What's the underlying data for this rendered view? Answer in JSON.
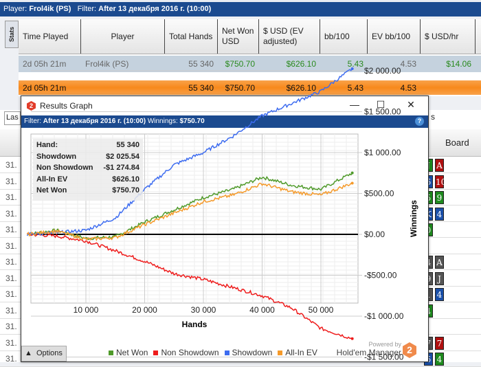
{
  "topbar": {
    "player_label": "Player:",
    "player": "Frol4ik (PS)",
    "filter_label": "Filter:",
    "filter": "After 13 декабря 2016 г. (10:00)"
  },
  "stats_tab": "Stats",
  "table": {
    "headers": [
      "Time Played",
      "Player",
      "Total Hands",
      "Net Won USD",
      "$ USD (EV adjusted)",
      "bb/100",
      "EV bb/100",
      "$ USD/hr"
    ],
    "row": [
      "2d 05h 21m",
      "Frol4ik (PS)",
      "55 340",
      "$750.70",
      "$626.10",
      "5.43",
      "4.53",
      "$14.06"
    ],
    "total": [
      "2d 05h 21m",
      "",
      "55 340",
      "$750.70",
      "$626.10",
      "5.43",
      "4.53",
      ""
    ]
  },
  "lower": {
    "dropdown": "Las",
    "board_header": "Board",
    "row_prefix": "31.",
    "hint": "s",
    "cards": [
      [
        [
          "J",
          "#1e8a1e"
        ],
        [
          "A",
          "#b01010"
        ]
      ],
      [
        [
          "6",
          "#1a4fa8"
        ],
        [
          "10",
          "#b01010"
        ]
      ],
      [
        [
          "5",
          "#1e8a1e"
        ],
        [
          "9",
          "#1e8a1e"
        ]
      ],
      [
        [
          "K",
          "#1a4fa8"
        ],
        [
          "4",
          "#1a4fa8"
        ]
      ],
      [
        [
          "0",
          "#1e8a1e"
        ]
      ],
      [],
      [
        [
          "4",
          "#555"
        ],
        [
          "A",
          "#555"
        ]
      ],
      [
        [
          "9",
          "#555"
        ],
        [
          "J",
          "#555"
        ]
      ],
      [
        [
          "1",
          "#555"
        ],
        [
          "4",
          "#1a4fa8"
        ]
      ],
      [
        [
          "4",
          "#1e8a1e"
        ]
      ],
      [],
      [
        [
          "7",
          "#555"
        ],
        [
          "7",
          "#b01010"
        ]
      ],
      [
        [
          "6",
          "#1a4fa8"
        ],
        [
          "4",
          "#1e8a1e"
        ]
      ]
    ]
  },
  "window": {
    "title": "Results Graph",
    "logo": "2",
    "filter_label": "Filter:",
    "filter": "After 13 декабря 2016 г. (10:00)",
    "winnings_label": "Winnings:",
    "winnings": "$750.70",
    "help": "?",
    "info": [
      [
        "Hand:",
        "55 340"
      ],
      [
        "Showdown",
        "$2 025.54"
      ],
      [
        "Non Showdown",
        "-$1 274.84"
      ],
      [
        "All-In EV",
        "$626.10"
      ],
      [
        "Net Won",
        "$750.70"
      ]
    ],
    "options": "Options",
    "powered_by": "Powered by",
    "brand": "Hold'em Manager",
    "brand_logo": "2"
  },
  "chart_data": {
    "type": "line",
    "xlabel": "Hands",
    "ylabel": "Winnings",
    "xlim": [
      0,
      56000
    ],
    "ylim": [
      -1600,
      2200
    ],
    "xticks": [
      10000,
      20000,
      30000,
      40000,
      50000
    ],
    "xtick_labels": [
      "10 000",
      "20 000",
      "30 000",
      "40 000",
      "50 000"
    ],
    "yticks": [
      2000,
      1500,
      1000,
      500,
      0,
      -500,
      -1000,
      -1500
    ],
    "ytick_labels": [
      "$2 000.00",
      "$1 500.00",
      "$1 000.00",
      "$500.00",
      "$0.00",
      "-$500.00",
      "-$1 000.00",
      "-$1 500.00"
    ],
    "grid": true,
    "legend_position": "bottom",
    "x": [
      0,
      5000,
      10000,
      15000,
      20000,
      25000,
      30000,
      35000,
      40000,
      45000,
      50000,
      55340
    ],
    "series": [
      {
        "name": "Net Won",
        "color": "#4f9a2a",
        "values": [
          0,
          50,
          -50,
          -30,
          150,
          300,
          450,
          550,
          700,
          600,
          550,
          750.7
        ]
      },
      {
        "name": "Non Showdown",
        "color": "#ee1c1c",
        "values": [
          0,
          -20,
          -80,
          -200,
          -330,
          -480,
          -550,
          -650,
          -750,
          -900,
          -1150,
          -1274.84
        ]
      },
      {
        "name": "Showdown",
        "color": "#3d6cf0",
        "values": [
          0,
          20,
          50,
          200,
          550,
          850,
          1000,
          1200,
          1450,
          1600,
          1750,
          2025.54
        ]
      },
      {
        "name": "All-In EV",
        "color": "#f59a2a",
        "values": [
          0,
          40,
          -60,
          -40,
          120,
          260,
          400,
          480,
          620,
          520,
          480,
          626.1
        ]
      }
    ]
  }
}
